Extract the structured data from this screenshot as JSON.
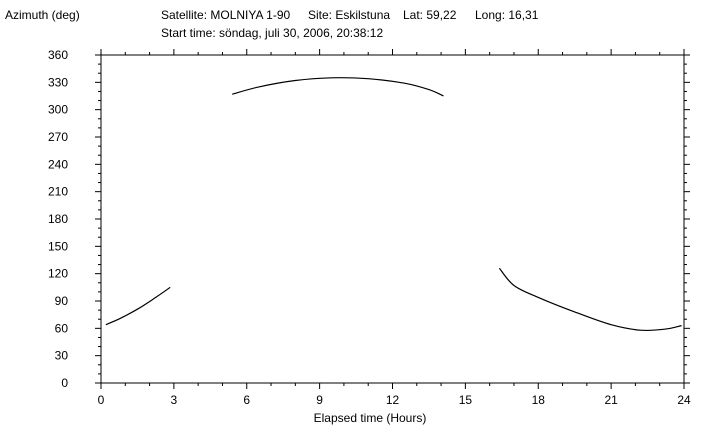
{
  "header": {
    "y_axis_title": "Azimuth (deg)",
    "satellite": "Satellite: MOLNIYA 1-90",
    "site": "Site: Eskilstuna",
    "lat": "Lat: 59,22",
    "long": "Long: 16,31",
    "start_time": "Start time: söndag, juli 30, 2006, 20:38:12"
  },
  "chart_data": {
    "type": "line",
    "title": "",
    "xlabel": "Elapsed time (Hours)",
    "ylabel": "Azimuth (deg)",
    "xlim": [
      0,
      24
    ],
    "ylim": [
      0,
      360
    ],
    "x_ticks": [
      0,
      3,
      6,
      9,
      12,
      15,
      18,
      21,
      24
    ],
    "y_ticks": [
      0,
      30,
      60,
      90,
      120,
      150,
      180,
      210,
      240,
      270,
      300,
      330,
      360
    ],
    "grid": false,
    "series": [
      {
        "segments": [
          {
            "x": [
              0.2,
              0.8,
              1.5,
              2.2,
              2.85
            ],
            "y": [
              64,
              71,
              81,
              93,
              105
            ]
          },
          {
            "x": [
              5.4,
              6.5,
              8.0,
              9.5,
              11.0,
              12.5,
              13.5,
              14.1
            ],
            "y": [
              317,
              325,
              332,
              335,
              334,
              329,
              322,
              315
            ]
          },
          {
            "x": [
              16.4,
              17.0,
              18.0,
              19.5,
              21.0,
              22.2,
              23.2,
              23.9
            ],
            "y": [
              126,
              107,
              94,
              78,
              64,
              58,
              59,
              63
            ]
          }
        ]
      }
    ]
  }
}
